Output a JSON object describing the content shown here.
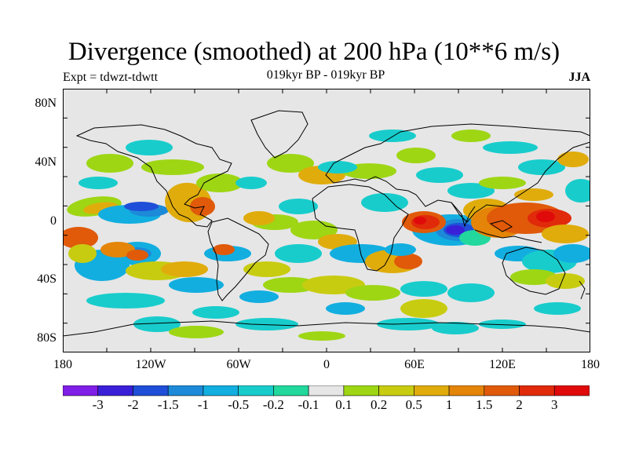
{
  "title": "Divergence (smoothed) at 200 hPa (10**6 m/s)",
  "expt_label": "Expt = tdwzt-tdwtt",
  "period": "019kyr BP - 019kyr BP",
  "season": "JJA",
  "lat_ticks": [
    "80N",
    "40N",
    "0",
    "40S",
    "80S"
  ],
  "lon_ticks": [
    "180",
    "120W",
    "60W",
    "0",
    "60E",
    "120E",
    "180"
  ],
  "colorbar": {
    "colors": [
      "#7f1ee6",
      "#3a1fd8",
      "#1f4fd8",
      "#1c8ad8",
      "#12aee0",
      "#18cccc",
      "#22d89c",
      "#e6e6e6",
      "#9ed614",
      "#c8cc10",
      "#e0ac0c",
      "#e48408",
      "#e05a0a",
      "#e02a0a",
      "#e00a0a"
    ],
    "labels": [
      "-3",
      "-2",
      "-1.5",
      "-1",
      "-0.5",
      "-0.2",
      "-0.1",
      "0.1",
      "0.2",
      "0.5",
      "1",
      "1.5",
      "2",
      "3"
    ]
  }
}
